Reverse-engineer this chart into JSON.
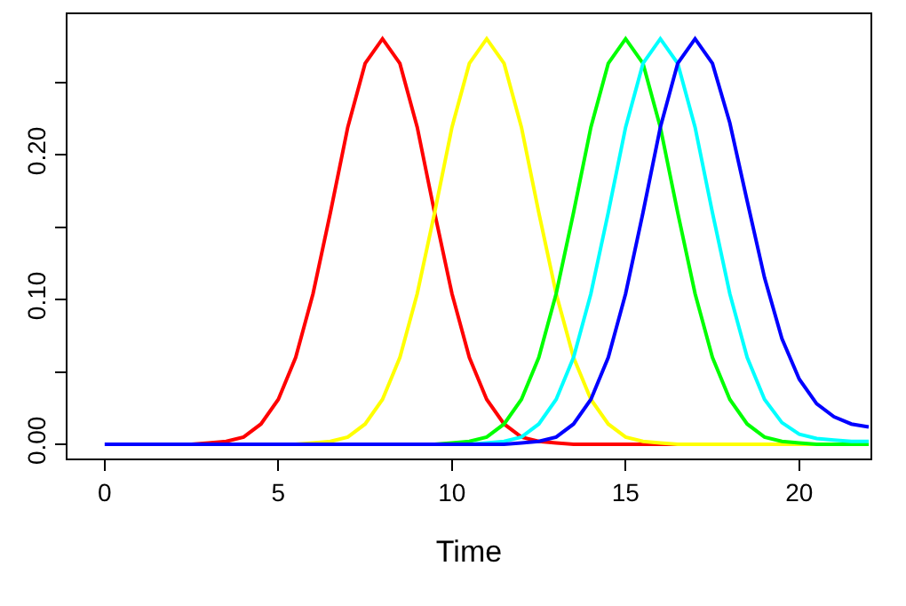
{
  "chart_data": {
    "type": "line",
    "xlabel": "Time",
    "x": [
      0,
      0.5,
      1,
      1.5,
      2,
      2.5,
      3,
      3.5,
      4,
      4.5,
      5,
      5.5,
      6,
      6.5,
      7,
      7.5,
      8,
      8.5,
      9,
      9.5,
      10,
      10.5,
      11,
      11.5,
      12,
      12.5,
      13,
      13.5,
      14,
      14.5,
      15,
      15.5,
      16,
      16.5,
      17,
      17.5,
      18,
      18.5,
      19,
      19.5,
      20,
      20.5,
      21,
      21.5,
      22
    ],
    "series": [
      {
        "color": "#ff0000",
        "values": [
          null,
          null,
          null,
          null,
          0,
          0,
          0.001,
          0.002,
          0.005,
          0.014,
          0.031,
          0.06,
          0.104,
          0.16,
          0.219,
          0.263,
          0.28,
          0.263,
          0.219,
          0.16,
          0.104,
          0.06,
          0.031,
          0.014,
          0.005,
          0.002,
          0.001,
          0,
          0,
          0,
          0,
          0,
          0,
          0,
          0,
          null,
          null,
          null,
          null,
          null,
          null,
          null,
          null,
          null,
          null
        ]
      },
      {
        "color": "#ffff00",
        "values": [
          null,
          null,
          null,
          null,
          null,
          null,
          null,
          null,
          null,
          null,
          0,
          0,
          0.001,
          0.002,
          0.005,
          0.014,
          0.031,
          0.06,
          0.104,
          0.16,
          0.219,
          0.263,
          0.28,
          0.263,
          0.219,
          0.16,
          0.104,
          0.06,
          0.031,
          0.014,
          0.005,
          0.002,
          0.001,
          0,
          0,
          0,
          0,
          0,
          0,
          0,
          0,
          0,
          0,
          null,
          null
        ]
      },
      {
        "color": "#00ff00",
        "values": [
          null,
          null,
          null,
          null,
          null,
          null,
          null,
          null,
          null,
          null,
          null,
          null,
          null,
          null,
          null,
          null,
          null,
          null,
          0,
          0,
          0.001,
          0.002,
          0.005,
          0.014,
          0.031,
          0.06,
          0.104,
          0.16,
          0.219,
          0.263,
          0.28,
          0.263,
          0.219,
          0.16,
          0.104,
          0.06,
          0.031,
          0.014,
          0.005,
          0.002,
          0.001,
          0,
          0,
          0,
          0
        ]
      },
      {
        "color": "#00ffff",
        "values": [
          null,
          null,
          null,
          null,
          null,
          null,
          null,
          null,
          null,
          null,
          null,
          null,
          null,
          null,
          null,
          null,
          null,
          null,
          null,
          null,
          0,
          0,
          0.001,
          0.002,
          0.005,
          0.014,
          0.031,
          0.06,
          0.104,
          0.16,
          0.219,
          0.263,
          0.28,
          0.263,
          0.219,
          0.16,
          0.104,
          0.06,
          0.031,
          0.015,
          0.007,
          0.004,
          0.003,
          0.002,
          0.002
        ]
      },
      {
        "color": "#0000ff",
        "values": [
          0,
          0,
          0,
          0,
          0,
          0,
          0,
          0,
          0,
          0,
          0,
          0,
          0,
          0,
          0,
          0,
          0,
          0,
          0,
          0,
          0,
          0,
          0,
          0,
          0.001,
          0.002,
          0.005,
          0.014,
          0.031,
          0.06,
          0.104,
          0.16,
          0.219,
          0.263,
          0.28,
          0.263,
          0.222,
          0.168,
          0.115,
          0.073,
          0.045,
          0.028,
          0.019,
          0.014,
          0.012
        ]
      }
    ],
    "xlim": [
      -1.07,
      22.05
    ],
    "xticks": [
      0,
      5,
      10,
      15,
      20
    ],
    "ylim": [
      -0.0098,
      0.297
    ],
    "yticks": [
      {
        "value": 0,
        "label": "0.00"
      },
      {
        "value": 0.05,
        "label": null
      },
      {
        "value": 0.1,
        "label": "0.10"
      },
      {
        "value": 0.15,
        "label": null
      },
      {
        "value": 0.2,
        "label": "0.20"
      },
      {
        "value": 0.25,
        "label": null
      }
    ],
    "marker": "none",
    "line_style": "solid"
  }
}
